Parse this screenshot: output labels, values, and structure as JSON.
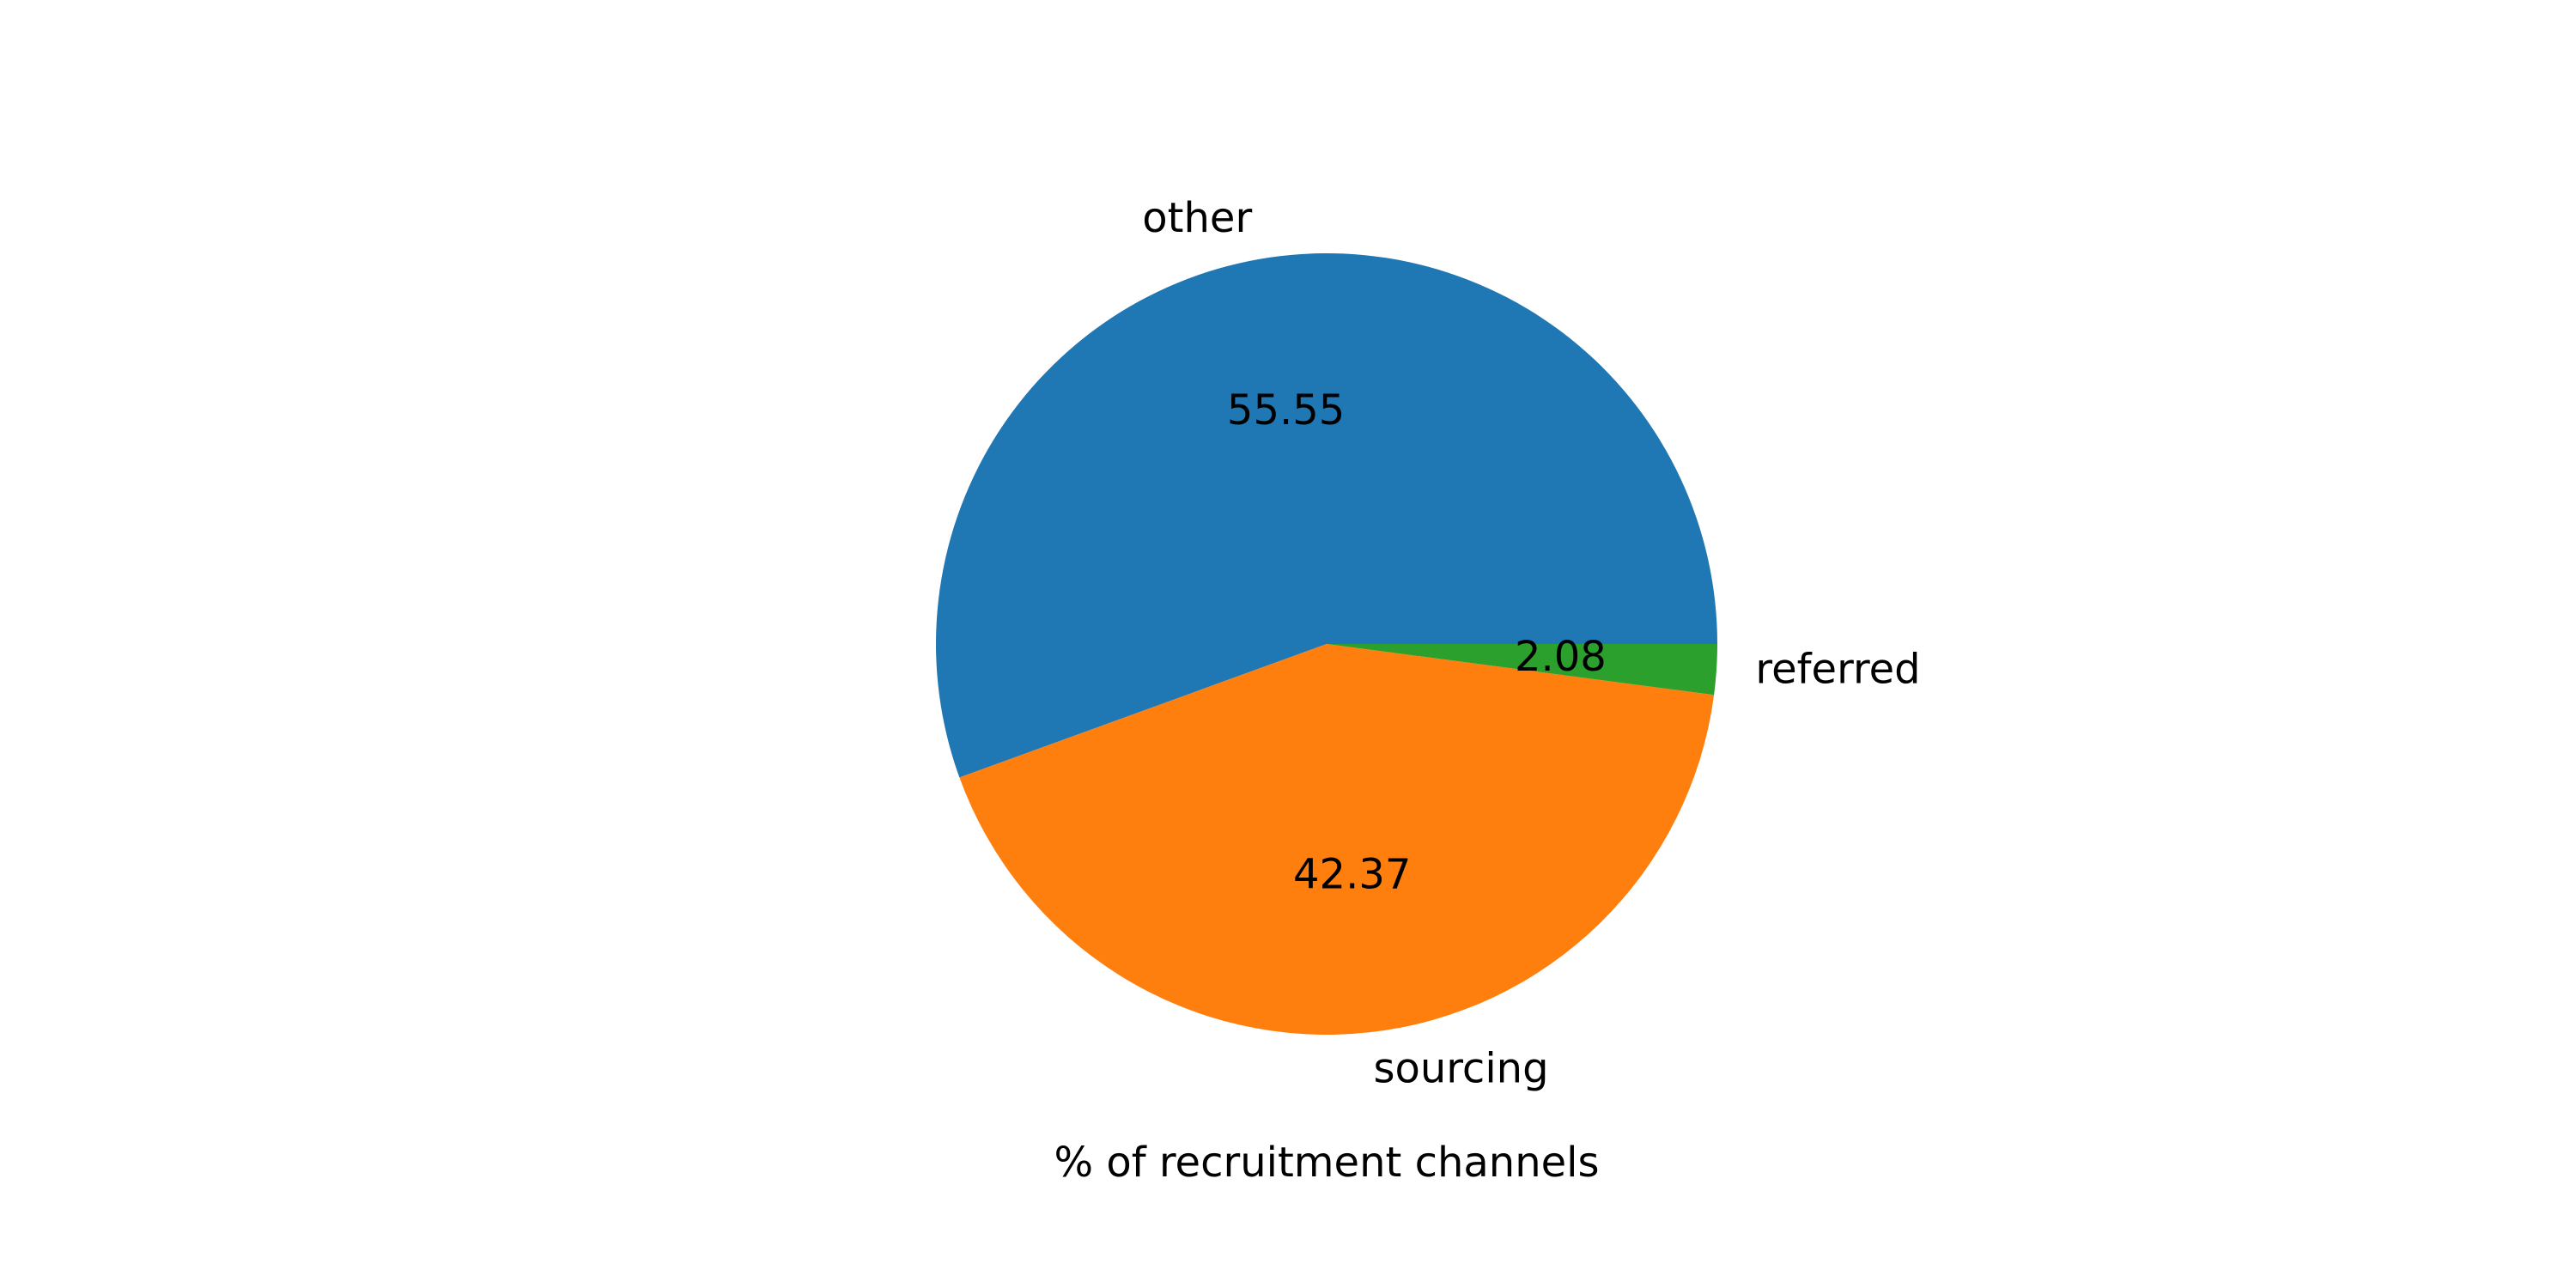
{
  "chart_data": {
    "type": "pie",
    "title": "",
    "xlabel": "% of recruitment channels",
    "ylabel": "",
    "grid": false,
    "legend": "none",
    "start_angle": 0,
    "direction": "counterclockwise",
    "slices": [
      {
        "label": "other",
        "value": 55.55,
        "value_label": "55.55",
        "color": "#1f77b4"
      },
      {
        "label": "sourcing",
        "value": 42.37,
        "value_label": "42.37",
        "color": "#ff7f0e"
      },
      {
        "label": "referred",
        "value": 2.08,
        "value_label": "2.08",
        "color": "#2ca02c"
      }
    ]
  }
}
